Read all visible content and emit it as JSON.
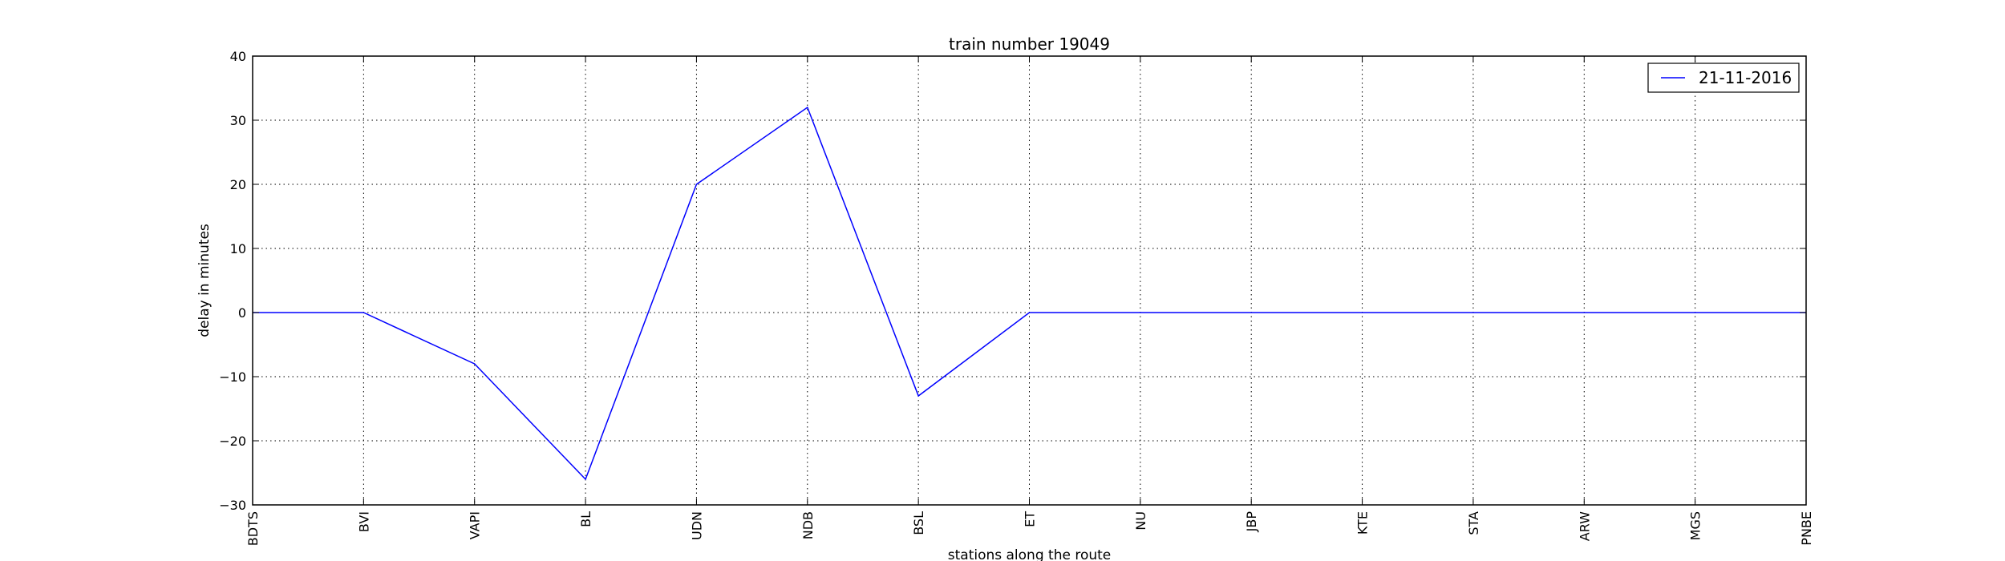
{
  "chart_data": {
    "type": "line",
    "title": "train number 19049",
    "xlabel": "stations along the route",
    "ylabel": "delay in minutes",
    "categories": [
      "BDTS",
      "BVI",
      "VAPI",
      "BL",
      "UDN",
      "NDB",
      "BSL",
      "ET",
      "NU",
      "JBP",
      "KTE",
      "STA",
      "ARW",
      "MGS",
      "PNBE"
    ],
    "series": [
      {
        "name": "21-11-2016",
        "color": "#0000ff",
        "values": [
          0,
          0,
          -8,
          -26,
          20,
          32,
          -13,
          0,
          0,
          0,
          0,
          0,
          0,
          0,
          0
        ]
      }
    ],
    "ylim": [
      -30,
      40
    ],
    "yticks": [
      "40",
      "30",
      "20",
      "10",
      "0",
      "−10",
      "−20",
      "−30"
    ],
    "ytick_values": [
      40,
      30,
      20,
      10,
      0,
      -10,
      -20,
      -30
    ],
    "grid": true,
    "legend_position": "top-right"
  }
}
